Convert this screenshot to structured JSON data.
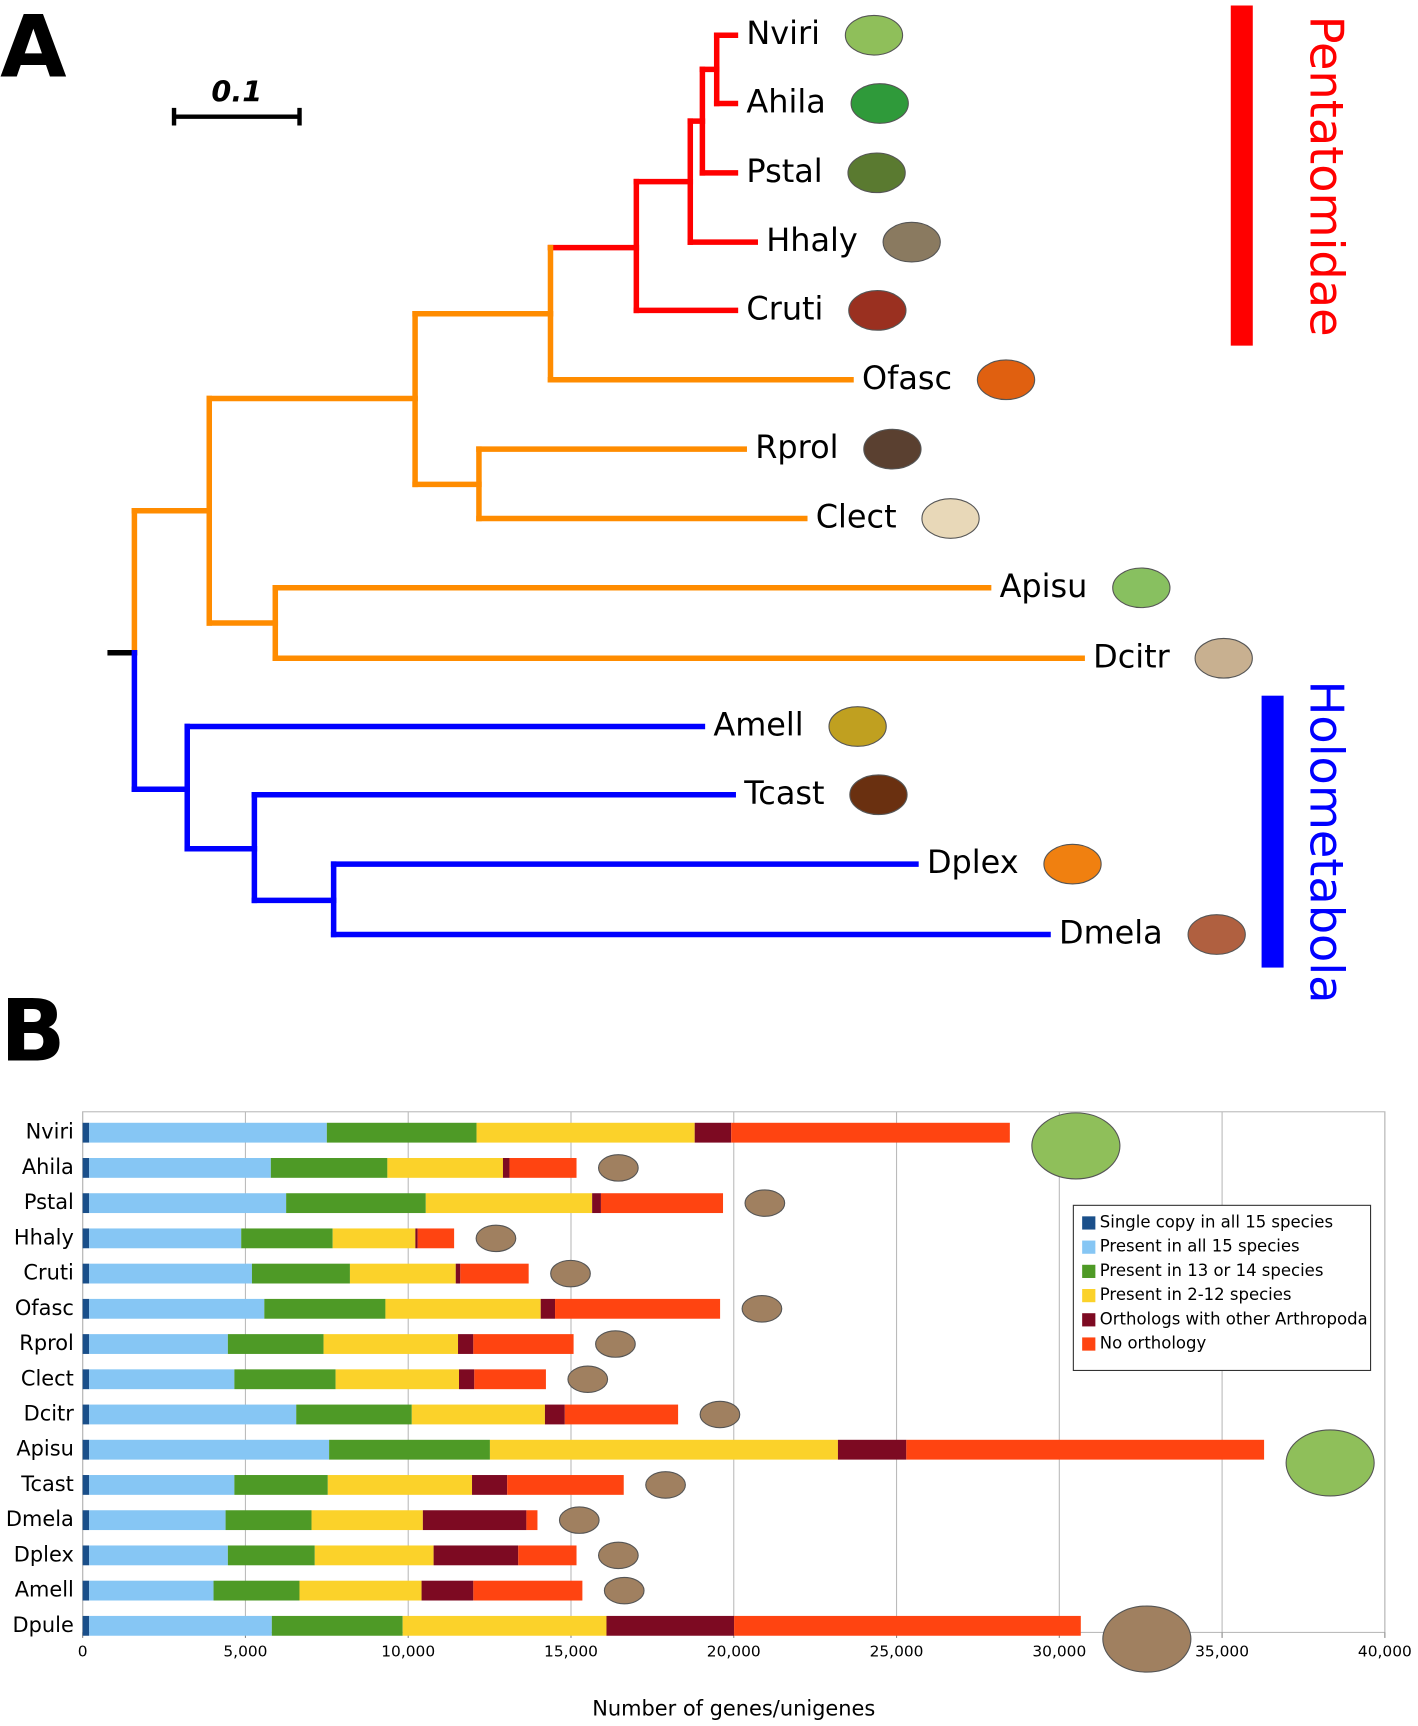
{
  "panel_a": {
    "label": "A",
    "scale_label": "0.1",
    "leaves": [
      "Nviri",
      "Ahila",
      "Pstal",
      "Hhaly",
      "Cruti",
      "Ofasc",
      "Rprol",
      "Clect",
      "Apisu",
      "Dcitr",
      "Amell",
      "Tcast",
      "Dplex",
      "Dmela"
    ],
    "clades": [
      {
        "name": "Pentatomidae",
        "color": "#ff0000"
      },
      {
        "name": "Holometabola",
        "color": "#0000ff"
      }
    ]
  },
  "panel_b_label": "B",
  "chart_data": {
    "type": "stacked-bar-horizontal",
    "categories": [
      "Nviri",
      "Ahila",
      "Pstal",
      "Hhaly",
      "Cruti",
      "Ofasc",
      "Rprol",
      "Clect",
      "Dcitr",
      "Apisu",
      "Tcast",
      "Dmela",
      "Dplex",
      "Amell",
      "Dpule"
    ],
    "series": [
      {
        "name": "Single copy in all 15 species",
        "color": "#1a4f8a",
        "values": [
          200,
          200,
          200,
          200,
          200,
          200,
          200,
          200,
          200,
          200,
          200,
          200,
          200,
          200,
          200
        ]
      },
      {
        "name": "Present in all 15 species",
        "color": "#86c6f4",
        "values": [
          7300,
          5580,
          6050,
          4670,
          5000,
          5380,
          4260,
          4460,
          6360,
          7370,
          4460,
          4190,
          4260,
          3820,
          5610
        ]
      },
      {
        "name": "Present in 13 or 14 species",
        "color": "#4e9a26",
        "values": [
          4600,
          3580,
          4290,
          2810,
          3010,
          3720,
          2940,
          3110,
          3550,
          4940,
          2870,
          2640,
          2670,
          2640,
          4020
        ]
      },
      {
        "name": "Present in 2-12 species",
        "color": "#fbd22a",
        "values": [
          6700,
          3550,
          5110,
          2540,
          3250,
          4770,
          4130,
          3790,
          4090,
          10690,
          4430,
          3420,
          3650,
          3750,
          6260
        ]
      },
      {
        "name": "Orthologs with other Arthropoda",
        "color": "#7d0a22",
        "values": [
          1120,
          200,
          270,
          70,
          140,
          440,
          470,
          470,
          610,
          2100,
          1080,
          3180,
          2600,
          1590,
          3920
        ]
      },
      {
        "name": "No orthology",
        "color": "#ff4411",
        "values": [
          8560,
          2060,
          3750,
          1120,
          2100,
          5070,
          3080,
          2200,
          3480,
          10990,
          3580,
          340,
          1790,
          3350,
          10650
        ]
      }
    ],
    "xlabel": "Number of genes/unigenes",
    "xlim": [
      0,
      40000
    ],
    "xticks": [
      0,
      {
        "value": 5000,
        "label": "5,000"
      },
      {
        "value": 10000,
        "label": "10,000"
      },
      {
        "value": 15000,
        "label": "15,000"
      },
      {
        "value": 20000,
        "label": "20,000"
      },
      {
        "value": 25000,
        "label": "25,000"
      },
      {
        "value": 30000,
        "label": "30,000"
      },
      {
        "value": 35000,
        "label": "35,000"
      },
      {
        "value": 40000,
        "label": "40,000"
      }
    ],
    "grid": true,
    "legend": "upper right"
  }
}
